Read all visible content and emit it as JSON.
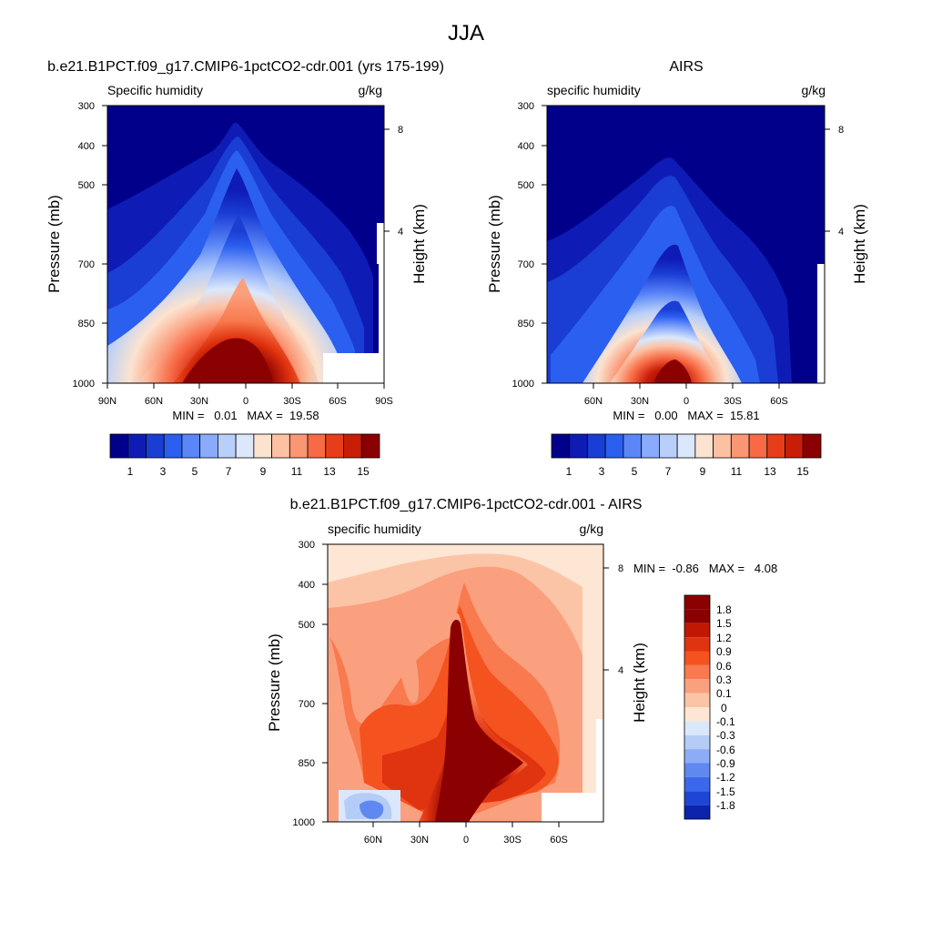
{
  "figure": {
    "title": "JJA"
  },
  "chart_data": [
    {
      "type": "heatmap",
      "title": "b.e21.B1PCT.f09_g17.CMIP6-1pctCO2-cdr.001 (yrs 175-199)",
      "left_label": "Specific humidity",
      "right_label": "g/kg",
      "ylabel": "Pressure (mb)",
      "y2label": "Height (km)",
      "x_ticks": [
        "90N",
        "60N",
        "30N",
        "0",
        "30S",
        "60S",
        "90S"
      ],
      "y_ticks": [
        "300",
        "400",
        "500",
        "700",
        "850",
        "1000"
      ],
      "y2_ticks": [
        "8",
        "4"
      ],
      "stats": "MIN =   0.01   MAX =  19.58",
      "colorbar_labels": [
        "1",
        "3",
        "5",
        "7",
        "9",
        "11",
        "13",
        "15"
      ],
      "colorbar_colors": [
        "#00008a",
        "#0e1cb5",
        "#1a3dd4",
        "#2b5ff0",
        "#5a86f8",
        "#8aabfb",
        "#b8cff9",
        "#dbe8fb",
        "#fbe3d0",
        "#fcc0a2",
        "#fb9674",
        "#f86a45",
        "#e83d1a",
        "#c81e08",
        "#8b0000"
      ]
    },
    {
      "type": "heatmap",
      "title": "AIRS",
      "left_label": "specific humidity",
      "right_label": "g/kg",
      "ylabel": "Pressure (mb)",
      "y2label": "Height (km)",
      "x_ticks": [
        "60N",
        "30N",
        "0",
        "30S",
        "60S"
      ],
      "y_ticks": [
        "300",
        "400",
        "500",
        "700",
        "850",
        "1000"
      ],
      "y2_ticks": [
        "8",
        "4"
      ],
      "stats": "MIN =   0.00   MAX =  15.81",
      "colorbar_labels": [
        "1",
        "3",
        "5",
        "7",
        "9",
        "11",
        "13",
        "15"
      ]
    },
    {
      "type": "heatmap",
      "title": "b.e21.B1PCT.f09_g17.CMIP6-1pctCO2-cdr.001 - AIRS",
      "left_label": "specific humidity",
      "right_label": "g/kg",
      "ylabel": "Pressure (mb)",
      "y2label": "Height (km)",
      "x_ticks": [
        "60N",
        "30N",
        "0",
        "30S",
        "60S"
      ],
      "y_ticks": [
        "300",
        "400",
        "500",
        "700",
        "850",
        "1000"
      ],
      "y2_ticks": [
        "8",
        "4"
      ],
      "stats": "MIN =  -0.86   MAX =   4.08",
      "colorbar_labels": [
        "1.8",
        "1.5",
        "1.2",
        "0.9",
        "0.6",
        "0.3",
        "0.1",
        "0",
        "-0.1",
        "-0.3",
        "-0.6",
        "-0.9",
        "-1.2",
        "-1.5",
        "-1.8"
      ],
      "colorbar_colors": [
        "#8b0000",
        "#c01805",
        "#e0330f",
        "#f4521f",
        "#f87a4e",
        "#fba07e",
        "#fcc4a6",
        "#fde6d3",
        "#dbe8fb",
        "#b5ccf7",
        "#8cacf5",
        "#5f88f0",
        "#3a67ec",
        "#1f45d6",
        "#0b24ab"
      ]
    }
  ]
}
